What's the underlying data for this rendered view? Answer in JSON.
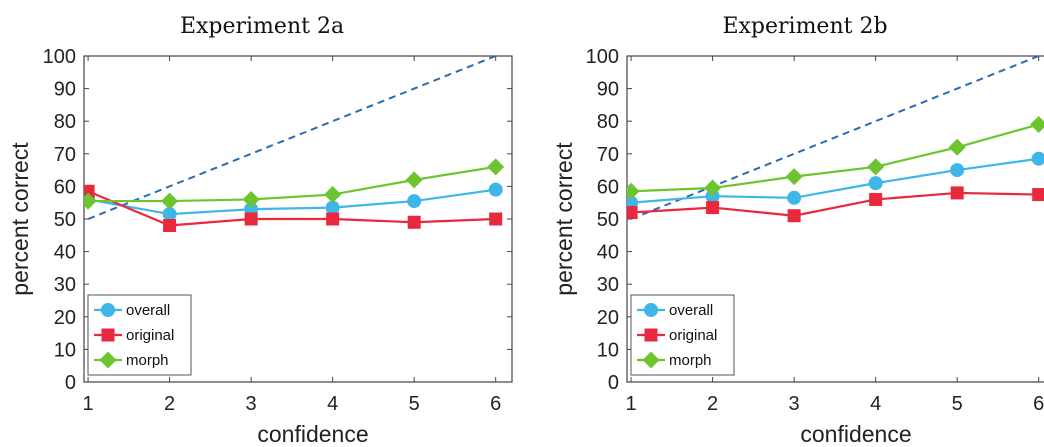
{
  "chart_data": [
    {
      "type": "line",
      "title": "Experiment 2a",
      "xlabel": "confidence",
      "ylabel": "percent correct",
      "xlim": [
        0.95,
        6.2
      ],
      "ylim": [
        0,
        100
      ],
      "x": [
        1,
        2,
        3,
        4,
        5,
        6
      ],
      "xticks": [
        "1",
        "2",
        "3",
        "4",
        "5",
        "6"
      ],
      "yticks": [
        "0",
        "10",
        "20",
        "30",
        "40",
        "50",
        "60",
        "70",
        "80",
        "90",
        "100"
      ],
      "grid": false,
      "legend_position": "bottom-left",
      "reference_line": {
        "x": [
          1,
          6
        ],
        "y": [
          50,
          100
        ],
        "style": "dashed",
        "color": "#2a6bb5"
      },
      "series": [
        {
          "name": "overall",
          "color": "#3fb6e8",
          "marker": "circle",
          "values": [
            56,
            51.5,
            53,
            53.5,
            55.5,
            59
          ]
        },
        {
          "name": "original",
          "color": "#e8283c",
          "marker": "square",
          "values": [
            58.5,
            48,
            50,
            50,
            49,
            50
          ]
        },
        {
          "name": "morph",
          "color": "#6cc52e",
          "marker": "diamond",
          "values": [
            55.5,
            55.5,
            56,
            57.5,
            62,
            66
          ]
        }
      ]
    },
    {
      "type": "line",
      "title": "Experiment 2b",
      "xlabel": "confidence",
      "ylabel": "percent correct",
      "xlim": [
        0.95,
        6.2
      ],
      "ylim": [
        0,
        100
      ],
      "x": [
        1,
        2,
        3,
        4,
        5,
        6
      ],
      "xticks": [
        "1",
        "2",
        "3",
        "4",
        "5",
        "6"
      ],
      "yticks": [
        "0",
        "10",
        "20",
        "30",
        "40",
        "50",
        "60",
        "70",
        "80",
        "90",
        "100"
      ],
      "grid": false,
      "legend_position": "bottom-left",
      "reference_line": {
        "x": [
          1,
          6
        ],
        "y": [
          50,
          100
        ],
        "style": "dashed",
        "color": "#2a6bb5"
      },
      "series": [
        {
          "name": "overall",
          "color": "#3fb6e8",
          "marker": "circle",
          "values": [
            55,
            57,
            56.5,
            61,
            65,
            68.5
          ]
        },
        {
          "name": "original",
          "color": "#e8283c",
          "marker": "square",
          "values": [
            52,
            53.5,
            51,
            56,
            58,
            57.5
          ]
        },
        {
          "name": "morph",
          "color": "#6cc52e",
          "marker": "diamond",
          "values": [
            58.5,
            59.5,
            63,
            66,
            72,
            79
          ]
        }
      ]
    }
  ]
}
